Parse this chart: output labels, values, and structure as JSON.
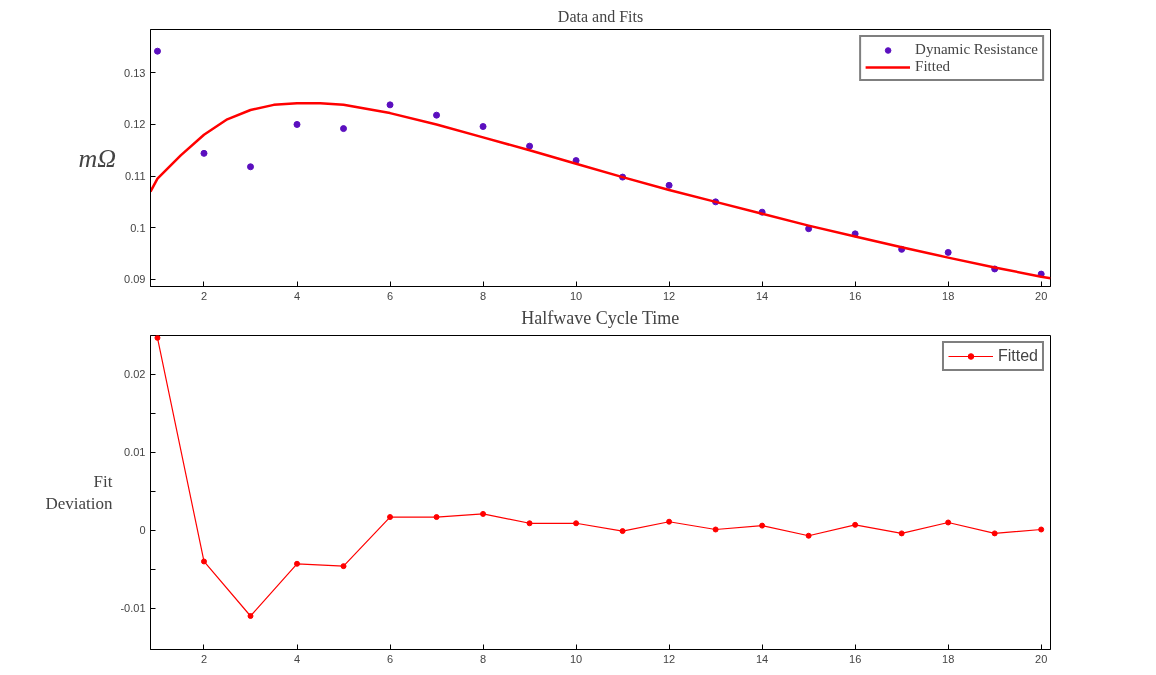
{
  "chart_data": [
    {
      "type": "scatter",
      "title": "Data and Fits",
      "xlabel": "Halfwave Cycle Time",
      "ylabel": "mΩ",
      "xlim": [
        0.85,
        20.2
      ],
      "ylim": [
        0.0886,
        0.1384
      ],
      "xticks": [
        2,
        4,
        6,
        8,
        10,
        12,
        14,
        16,
        18,
        20
      ],
      "yticks": [
        0.09,
        0.1,
        0.11,
        0.12,
        0.13
      ],
      "legend": "top right",
      "grid": false,
      "series": [
        {
          "name": "Dynamic Resistance",
          "type": "scatter",
          "marker": "circle",
          "color": "#5b0fbf",
          "x": [
            1,
            2,
            3,
            4,
            5,
            6,
            7,
            8,
            9,
            10,
            11,
            12,
            13,
            14,
            15,
            16,
            17,
            18,
            19,
            20
          ],
          "values": [
            0.1342,
            0.1144,
            0.1118,
            0.12,
            0.1192,
            0.1238,
            0.1218,
            0.1196,
            0.1158,
            0.113,
            0.1098,
            0.1082,
            0.105,
            0.103,
            0.0998,
            0.0988,
            0.0958,
            0.0952,
            0.092,
            0.091
          ]
        },
        {
          "name": "Fitted",
          "type": "line",
          "marker": "none",
          "color": "#ff0000",
          "x": [
            0.85,
            1,
            1.5,
            2,
            2.5,
            3,
            3.5,
            4,
            4.5,
            5,
            6,
            7,
            8,
            9,
            10,
            11,
            12,
            13,
            14,
            15,
            16,
            17,
            18,
            19,
            20,
            20.2
          ],
          "values": [
            0.107,
            0.1095,
            0.114,
            0.118,
            0.121,
            0.1228,
            0.1238,
            0.1241,
            0.1241,
            0.1238,
            0.1222,
            0.12,
            0.1175,
            0.115,
            0.1124,
            0.1098,
            0.1073,
            0.105,
            0.1027,
            0.1004,
            0.0983,
            0.0962,
            0.0942,
            0.0923,
            0.0905,
            0.0902
          ]
        }
      ]
    },
    {
      "type": "line",
      "ylabel": "Fit\nDeviation",
      "xlim": [
        0.85,
        20.2
      ],
      "ylim": [
        -0.0153,
        0.025
      ],
      "xticks": [
        2,
        4,
        6,
        8,
        10,
        12,
        14,
        16,
        18,
        20
      ],
      "yticks": [
        {
          "value": -0.01,
          "label": "-0.01"
        },
        {
          "value": -0.005,
          "label": null
        },
        0,
        {
          "value": 0.005,
          "label": null
        },
        0.01,
        {
          "value": 0.015,
          "label": null
        },
        0.02
      ],
      "legend": "top right",
      "grid": false,
      "marker": "circle",
      "series": [
        {
          "name": "Fitted",
          "color": "#ff0000",
          "x": [
            1,
            2,
            3,
            4,
            5,
            6,
            7,
            8,
            9,
            10,
            11,
            12,
            13,
            14,
            15,
            16,
            17,
            18,
            19,
            20
          ],
          "values": [
            0.0247,
            -0.004,
            -0.011,
            -0.0043,
            -0.0046,
            0.0017,
            0.0017,
            0.0021,
            0.0009,
            0.0009,
            -0.0001,
            0.0011,
            0.0001,
            0.0006,
            -0.0007,
            0.0007,
            -0.0004,
            0.001,
            -0.0004,
            0.0001
          ]
        }
      ]
    }
  ]
}
